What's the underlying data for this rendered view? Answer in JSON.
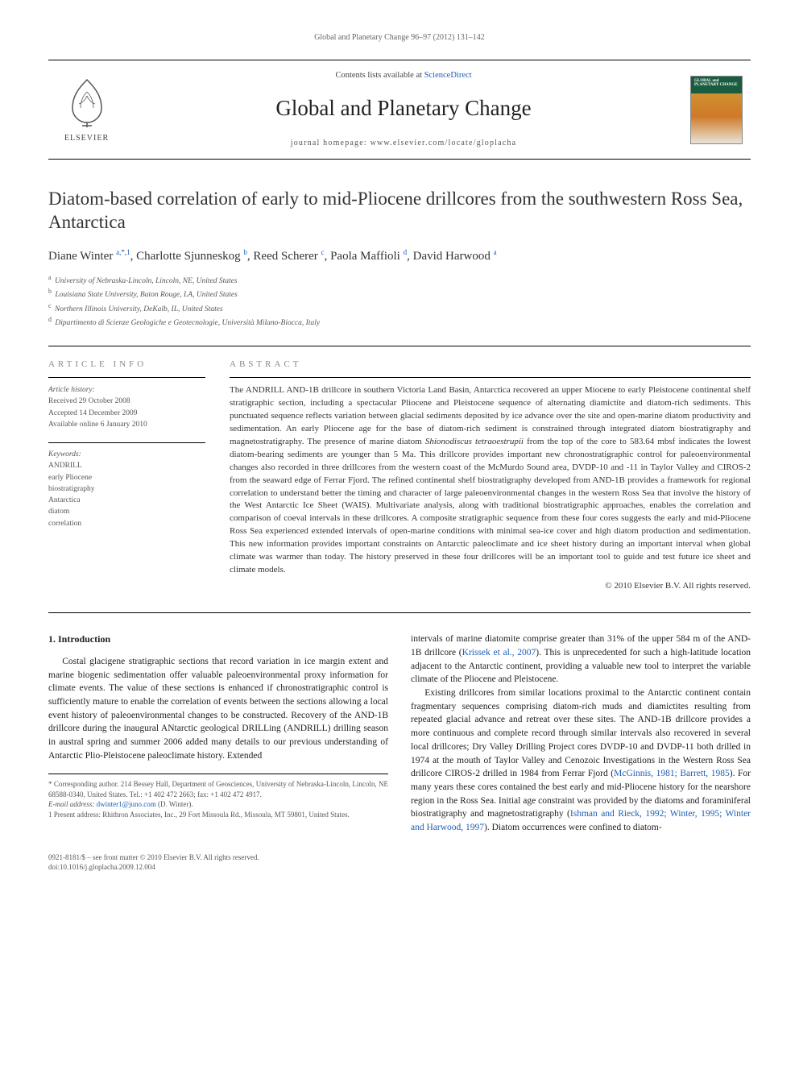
{
  "running_head": "Global and Planetary Change 96–97 (2012) 131–142",
  "masthead": {
    "contents_prefix": "Contents lists available at ",
    "contents_link": "ScienceDirect",
    "journal_name": "Global and Planetary Change",
    "homepage_prefix": "journal homepage: ",
    "homepage_url": "www.elsevier.com/locate/gloplacha",
    "publisher": "ELSEVIER",
    "cover_label": "GLOBAL and PLANETARY CHANGE"
  },
  "article": {
    "title": "Diatom-based correlation of early to mid-Pliocene drillcores from the southwestern Ross Sea, Antarctica",
    "authors_html": "Diane Winter <sup><a>a,</a><a>*</a>,<a>1</a></sup>, Charlotte Sjunneskog <sup><a>b</a></sup>, Reed Scherer <sup><a>c</a></sup>, Paola Maffioli <sup><a>d</a></sup>, David Harwood <sup><a>a</a></sup>",
    "affiliations": [
      {
        "sup": "a",
        "text": "University of Nebraska-Lincoln, Lincoln, NE, United States"
      },
      {
        "sup": "b",
        "text": "Louisiana State University, Baton Rouge, LA, United States"
      },
      {
        "sup": "c",
        "text": "Northern Illinois University, DeKalb, IL, United States"
      },
      {
        "sup": "d",
        "text": "Dipartimento di Scienze Geologiche e Geotecnologie, Università Milano-Biocca, Italy"
      }
    ]
  },
  "info": {
    "label": "ARTICLE INFO",
    "history_label": "Article history:",
    "received": "Received 29 October 2008",
    "accepted": "Accepted 14 December 2009",
    "online": "Available online 6 January 2010",
    "keywords_label": "Keywords:",
    "keywords": [
      "ANDRILL",
      "early Pliocene",
      "biostratigraphy",
      "Antarctica",
      "diatom",
      "correlation"
    ]
  },
  "abstract": {
    "label": "ABSTRACT",
    "text": "The ANDRILL AND-1B drillcore in southern Victoria Land Basin, Antarctica recovered an upper Miocene to early Pleistocene continental shelf stratigraphic section, including a spectacular Pliocene and Pleistocene sequence of alternating diamictite and diatom-rich sediments. This punctuated sequence reflects variation between glacial sediments deposited by ice advance over the site and open-marine diatom productivity and sedimentation. An early Pliocene age for the base of diatom-rich sediment is constrained through integrated diatom biostratigraphy and magnetostratigraphy. The presence of marine diatom Shionodiscus tetraoestrupii from the top of the core to 583.64 mbsf indicates the lowest diatom-bearing sediments are younger than 5 Ma. This drillcore provides important new chronostratigraphic control for paleoenvironmental changes also recorded in three drillcores from the western coast of the McMurdo Sound area, DVDP-10 and -11 in Taylor Valley and CIROS-2 from the seaward edge of Ferrar Fjord. The refined continental shelf biostratigraphy developed from AND-1B provides a framework for regional correlation to understand better the timing and character of large paleoenvironmental changes in the western Ross Sea that involve the history of the West Antarctic Ice Sheet (WAIS). Multivariate analysis, along with traditional biostratigraphic approaches, enables the correlation and comparison of coeval intervals in these drillcores. A composite stratigraphic sequence from these four cores suggests the early and mid-Pliocene Ross Sea experienced extended intervals of open-marine conditions with minimal sea-ice cover and high diatom production and sedimentation. This new information provides important constraints on Antarctic paleoclimate and ice sheet history during an important interval when global climate was warmer than today. The history preserved in these four drillcores will be an important tool to guide and test future ice sheet and climate models.",
    "copyright": "© 2010 Elsevier B.V. All rights reserved."
  },
  "body": {
    "section_number": "1.",
    "section_title": "Introduction",
    "para1": "Costal glacigene stratigraphic sections that record variation in ice margin extent and marine biogenic sedimentation offer valuable paleoenvironmental proxy information for climate events. The value of these sections is enhanced if chronostratigraphic control is sufficiently mature to enable the correlation of events between the sections allowing a local event history of paleoenvironmental changes to be constructed. Recovery of the AND-1B drillcore during the inaugural ANtarctic geological DRILLing (ANDRILL) drilling season in austral spring and summer 2006 added many details to our previous understanding of Antarctic Plio-Pleistocene paleoclimate history. Extended",
    "para2_pre": "intervals of marine diatomite comprise greater than 31% of the upper 584 m of the AND-1B drillcore (",
    "para2_link": "Krissek et al., 2007",
    "para2_post": "). This is unprecedented for such a high-latitude location adjacent to the Antarctic continent, providing a valuable new tool to interpret the variable climate of the Pliocene and Pleistocene.",
    "para3_pre": "Existing drillcores from similar locations proximal to the Antarctic continent contain fragmentary sequences comprising diatom-rich muds and diamictites resulting from repeated glacial advance and retreat over these sites. The AND-1B drillcore provides a more continuous and complete record through similar intervals also recovered in several local drillcores; Dry Valley Drilling Project cores DVDP-10 and DVDP-11 both drilled in 1974 at the mouth of Taylor Valley and Cenozoic Investigations in the Western Ross Sea drillcore CIROS-2 drilled in 1984 from Ferrar Fjord (",
    "para3_link1": "McGinnis, 1981; Barrett, 1985",
    "para3_mid": "). For many years these cores contained the best early and mid-Pliocene history for the nearshore region in the Ross Sea. Initial age constraint was provided by the diatoms and foraminiferal biostratigraphy and magnetostratigraphy (",
    "para3_link2": "Ishman and Rieck, 1992; Winter, 1995; Winter and Harwood, 1997",
    "para3_post": "). Diatom occurrences were confined to diatom-"
  },
  "footnotes": {
    "corr": "* Corresponding author. 214 Bessey Hall, Department of Geosciences, University of Nebraska-Lincoln, Lincoln, NE 68588-0340, United States. Tel.: +1 402 472 2663; fax: +1 402 472 4917.",
    "email_label": "E-mail address: ",
    "email": "dwinter1@juno.com",
    "email_suffix": " (D. Winter).",
    "present": "1 Present address: Rhithron Associates, Inc., 29 Fort Missoula Rd., Missoula, MT 59801, United States."
  },
  "footer": {
    "left1": "0921-8181/$ – see front matter © 2010 Elsevier B.V. All rights reserved.",
    "left2_pre": "doi:",
    "doi": "10.1016/j.gloplacha.2009.12.004"
  },
  "style": {
    "link_color": "#1b5fb5",
    "text_color": "#333"
  }
}
